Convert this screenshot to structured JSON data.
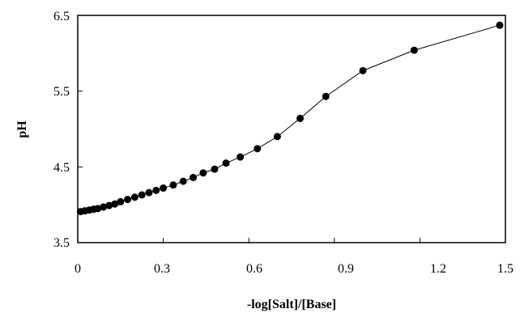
{
  "chart_data": {
    "type": "line",
    "title": "",
    "xlabel": "-log[Salt]/[Base]",
    "ylabel": "pH",
    "xlim": [
      0,
      1.5
    ],
    "ylim": [
      3.5,
      6.5
    ],
    "x_ticks": [
      "0",
      "0.3",
      "0.6",
      "0.9",
      "1.2",
      "1.5"
    ],
    "y_ticks": [
      "3.5",
      "4.5",
      "5.5",
      "6.5"
    ],
    "grid": false,
    "legend": "none",
    "marker": "filled-circle",
    "color": "#000000",
    "series": [
      {
        "x": [
          0.01,
          0.025,
          0.04,
          0.055,
          0.07,
          0.09,
          0.11,
          0.13,
          0.15,
          0.175,
          0.2,
          0.225,
          0.25,
          0.275,
          0.3,
          0.335,
          0.37,
          0.405,
          0.44,
          0.48,
          0.52,
          0.57,
          0.63,
          0.7,
          0.78,
          0.87,
          1.0,
          1.18,
          1.48
        ],
        "y": [
          3.91,
          3.92,
          3.93,
          3.94,
          3.95,
          3.97,
          3.99,
          4.01,
          4.04,
          4.07,
          4.1,
          4.13,
          4.16,
          4.19,
          4.22,
          4.26,
          4.31,
          4.36,
          4.42,
          4.47,
          4.55,
          4.63,
          4.74,
          4.9,
          5.14,
          5.43,
          5.77,
          6.04,
          6.37
        ]
      }
    ]
  }
}
